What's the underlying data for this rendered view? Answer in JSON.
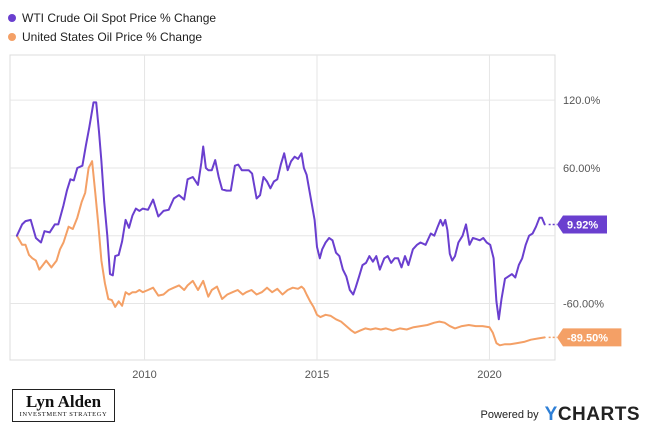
{
  "legend": [
    {
      "name": "WTI Crude Oil Spot Price % Change",
      "color": "#6a3fcf"
    },
    {
      "name": "United States Oil Price % Change",
      "color": "#f4a066"
    }
  ],
  "branding": {
    "logo_name": "Lyn Alden",
    "logo_sub": "INVESTMENT STRATEGY",
    "powered_by": "Powered by",
    "ycharts_y": "Y",
    "ycharts_rest": "CHARTS"
  },
  "chart_data": {
    "type": "line",
    "x_ticks": [
      2010,
      2015,
      2020
    ],
    "xlim": [
      2006.1,
      2021.9
    ],
    "ylim": [
      -110,
      160
    ],
    "y_ticks": [
      120,
      60,
      0,
      -60
    ],
    "y_tick_labels": [
      "120.0%",
      "60.00%",
      "",
      "-60.00%"
    ],
    "grid": true,
    "legend_position": "top-left",
    "end_labels": [
      {
        "series": "WTI Crude Oil Spot Price % Change",
        "text": "9.92%",
        "color": "#6a3fcf"
      },
      {
        "series": "United States Oil Price % Change",
        "text": "-89.50%",
        "color": "#f4a066"
      }
    ],
    "series": [
      {
        "name": "WTI Crude Oil Spot Price % Change",
        "color": "#6a3fcf",
        "points": [
          [
            2006.3,
            0
          ],
          [
            2006.45,
            10
          ],
          [
            2006.55,
            13
          ],
          [
            2006.7,
            14
          ],
          [
            2006.85,
            -2
          ],
          [
            2007.0,
            -6
          ],
          [
            2007.1,
            4
          ],
          [
            2007.25,
            3
          ],
          [
            2007.4,
            10
          ],
          [
            2007.5,
            10
          ],
          [
            2007.65,
            27
          ],
          [
            2007.75,
            40
          ],
          [
            2007.85,
            50
          ],
          [
            2007.95,
            49
          ],
          [
            2008.05,
            60
          ],
          [
            2008.2,
            62
          ],
          [
            2008.3,
            80
          ],
          [
            2008.4,
            96
          ],
          [
            2008.52,
            118
          ],
          [
            2008.6,
            118
          ],
          [
            2008.68,
            92
          ],
          [
            2008.75,
            66
          ],
          [
            2008.83,
            30
          ],
          [
            2008.92,
            0
          ],
          [
            2009.0,
            -34
          ],
          [
            2009.08,
            -35
          ],
          [
            2009.15,
            -18
          ],
          [
            2009.25,
            -17
          ],
          [
            2009.35,
            -5
          ],
          [
            2009.45,
            14
          ],
          [
            2009.55,
            7
          ],
          [
            2009.65,
            18
          ],
          [
            2009.75,
            24
          ],
          [
            2009.85,
            22
          ],
          [
            2009.95,
            24
          ],
          [
            2010.1,
            23
          ],
          [
            2010.25,
            32
          ],
          [
            2010.4,
            17
          ],
          [
            2010.55,
            22
          ],
          [
            2010.7,
            23
          ],
          [
            2010.85,
            33
          ],
          [
            2011.0,
            36
          ],
          [
            2011.15,
            32
          ],
          [
            2011.25,
            50
          ],
          [
            2011.4,
            52
          ],
          [
            2011.55,
            45
          ],
          [
            2011.65,
            65
          ],
          [
            2011.7,
            79
          ],
          [
            2011.78,
            60
          ],
          [
            2011.85,
            58
          ],
          [
            2011.95,
            58
          ],
          [
            2012.05,
            67
          ],
          [
            2012.15,
            52
          ],
          [
            2012.25,
            41
          ],
          [
            2012.38,
            40
          ],
          [
            2012.5,
            40
          ],
          [
            2012.62,
            62
          ],
          [
            2012.72,
            63
          ],
          [
            2012.82,
            58
          ],
          [
            2012.92,
            58
          ],
          [
            2013.02,
            58
          ],
          [
            2013.12,
            55
          ],
          [
            2013.25,
            33
          ],
          [
            2013.35,
            36
          ],
          [
            2013.45,
            52
          ],
          [
            2013.55,
            48
          ],
          [
            2013.65,
            42
          ],
          [
            2013.75,
            48
          ],
          [
            2013.85,
            50
          ],
          [
            2013.95,
            63
          ],
          [
            2014.05,
            73
          ],
          [
            2014.15,
            58
          ],
          [
            2014.25,
            66
          ],
          [
            2014.35,
            70
          ],
          [
            2014.45,
            68
          ],
          [
            2014.55,
            73
          ],
          [
            2014.62,
            60
          ],
          [
            2014.7,
            54
          ],
          [
            2014.78,
            40
          ],
          [
            2014.85,
            28
          ],
          [
            2014.93,
            14
          ],
          [
            2015.0,
            -10
          ],
          [
            2015.08,
            -20
          ],
          [
            2015.15,
            -12
          ],
          [
            2015.25,
            -6
          ],
          [
            2015.35,
            -2
          ],
          [
            2015.45,
            -4
          ],
          [
            2015.55,
            -15
          ],
          [
            2015.65,
            -18
          ],
          [
            2015.75,
            -30
          ],
          [
            2015.85,
            -36
          ],
          [
            2015.95,
            -48
          ],
          [
            2016.05,
            -52
          ],
          [
            2016.12,
            -46
          ],
          [
            2016.22,
            -36
          ],
          [
            2016.32,
            -26
          ],
          [
            2016.42,
            -24
          ],
          [
            2016.52,
            -18
          ],
          [
            2016.62,
            -23
          ],
          [
            2016.72,
            -18
          ],
          [
            2016.82,
            -30
          ],
          [
            2016.95,
            -20
          ],
          [
            2017.05,
            -18
          ],
          [
            2017.15,
            -24
          ],
          [
            2017.25,
            -20
          ],
          [
            2017.35,
            -20
          ],
          [
            2017.45,
            -28
          ],
          [
            2017.55,
            -18
          ],
          [
            2017.65,
            -26
          ],
          [
            2017.78,
            -12
          ],
          [
            2017.9,
            -8
          ],
          [
            2018.0,
            -6
          ],
          [
            2018.15,
            -8
          ],
          [
            2018.3,
            2
          ],
          [
            2018.4,
            0
          ],
          [
            2018.5,
            8
          ],
          [
            2018.58,
            14
          ],
          [
            2018.65,
            9
          ],
          [
            2018.72,
            14
          ],
          [
            2018.78,
            5
          ],
          [
            2018.85,
            -16
          ],
          [
            2018.92,
            -22
          ],
          [
            2019.0,
            -18
          ],
          [
            2019.1,
            -6
          ],
          [
            2019.22,
            0
          ],
          [
            2019.32,
            10
          ],
          [
            2019.42,
            -8
          ],
          [
            2019.52,
            -2
          ],
          [
            2019.62,
            -3
          ],
          [
            2019.72,
            -4
          ],
          [
            2019.82,
            -2
          ],
          [
            2019.92,
            -6
          ],
          [
            2020.02,
            -8
          ],
          [
            2020.12,
            -20
          ],
          [
            2020.2,
            -58
          ],
          [
            2020.27,
            -74
          ],
          [
            2020.35,
            -56
          ],
          [
            2020.45,
            -38
          ],
          [
            2020.55,
            -36
          ],
          [
            2020.65,
            -34
          ],
          [
            2020.75,
            -37
          ],
          [
            2020.85,
            -26
          ],
          [
            2020.95,
            -20
          ],
          [
            2021.05,
            -8
          ],
          [
            2021.15,
            0
          ],
          [
            2021.25,
            2
          ],
          [
            2021.35,
            8
          ],
          [
            2021.45,
            16
          ],
          [
            2021.52,
            16
          ],
          [
            2021.6,
            10
          ]
        ]
      },
      {
        "name": "United States Oil Price % Change",
        "color": "#f4a066",
        "points": [
          [
            2006.3,
            0
          ],
          [
            2006.45,
            -8
          ],
          [
            2006.55,
            -8
          ],
          [
            2006.65,
            -17
          ],
          [
            2006.75,
            -20
          ],
          [
            2006.85,
            -22
          ],
          [
            2006.95,
            -30
          ],
          [
            2007.05,
            -26
          ],
          [
            2007.15,
            -22
          ],
          [
            2007.3,
            -28
          ],
          [
            2007.45,
            -22
          ],
          [
            2007.55,
            -12
          ],
          [
            2007.65,
            -6
          ],
          [
            2007.8,
            8
          ],
          [
            2007.92,
            6
          ],
          [
            2008.05,
            16
          ],
          [
            2008.18,
            30
          ],
          [
            2008.28,
            38
          ],
          [
            2008.38,
            60
          ],
          [
            2008.48,
            66
          ],
          [
            2008.58,
            36
          ],
          [
            2008.66,
            10
          ],
          [
            2008.75,
            -22
          ],
          [
            2008.85,
            -42
          ],
          [
            2008.95,
            -56
          ],
          [
            2009.05,
            -57
          ],
          [
            2009.15,
            -63
          ],
          [
            2009.25,
            -58
          ],
          [
            2009.35,
            -62
          ],
          [
            2009.45,
            -50
          ],
          [
            2009.55,
            -52
          ],
          [
            2009.65,
            -50
          ],
          [
            2009.75,
            -50
          ],
          [
            2009.85,
            -48
          ],
          [
            2009.95,
            -50
          ],
          [
            2010.1,
            -48
          ],
          [
            2010.25,
            -46
          ],
          [
            2010.4,
            -53
          ],
          [
            2010.55,
            -52
          ],
          [
            2010.7,
            -48
          ],
          [
            2010.85,
            -46
          ],
          [
            2011.0,
            -44
          ],
          [
            2011.15,
            -48
          ],
          [
            2011.25,
            -44
          ],
          [
            2011.4,
            -40
          ],
          [
            2011.55,
            -48
          ],
          [
            2011.7,
            -40
          ],
          [
            2011.85,
            -54
          ],
          [
            2011.95,
            -48
          ],
          [
            2012.1,
            -45
          ],
          [
            2012.25,
            -56
          ],
          [
            2012.4,
            -52
          ],
          [
            2012.55,
            -50
          ],
          [
            2012.7,
            -48
          ],
          [
            2012.85,
            -52
          ],
          [
            2012.95,
            -50
          ],
          [
            2013.1,
            -48
          ],
          [
            2013.25,
            -52
          ],
          [
            2013.4,
            -50
          ],
          [
            2013.55,
            -46
          ],
          [
            2013.7,
            -50
          ],
          [
            2013.85,
            -47
          ],
          [
            2014.0,
            -52
          ],
          [
            2014.15,
            -48
          ],
          [
            2014.3,
            -46
          ],
          [
            2014.45,
            -47
          ],
          [
            2014.55,
            -45
          ],
          [
            2014.62,
            -47
          ],
          [
            2014.7,
            -52
          ],
          [
            2014.8,
            -58
          ],
          [
            2014.9,
            -63
          ],
          [
            2015.0,
            -70
          ],
          [
            2015.1,
            -72
          ],
          [
            2015.25,
            -70
          ],
          [
            2015.4,
            -71
          ],
          [
            2015.55,
            -74
          ],
          [
            2015.7,
            -76
          ],
          [
            2015.85,
            -80
          ],
          [
            2016.0,
            -84
          ],
          [
            2016.1,
            -86
          ],
          [
            2016.25,
            -84
          ],
          [
            2016.4,
            -82
          ],
          [
            2016.55,
            -83
          ],
          [
            2016.7,
            -82
          ],
          [
            2016.85,
            -83
          ],
          [
            2017.0,
            -82
          ],
          [
            2017.2,
            -84
          ],
          [
            2017.4,
            -82
          ],
          [
            2017.6,
            -83
          ],
          [
            2017.8,
            -81
          ],
          [
            2018.0,
            -80
          ],
          [
            2018.2,
            -79
          ],
          [
            2018.4,
            -77
          ],
          [
            2018.55,
            -76
          ],
          [
            2018.7,
            -77
          ],
          [
            2018.85,
            -80
          ],
          [
            2019.0,
            -82
          ],
          [
            2019.2,
            -80
          ],
          [
            2019.4,
            -79
          ],
          [
            2019.6,
            -80
          ],
          [
            2019.8,
            -80
          ],
          [
            2020.0,
            -81
          ],
          [
            2020.1,
            -86
          ],
          [
            2020.2,
            -95
          ],
          [
            2020.3,
            -97
          ],
          [
            2020.45,
            -96
          ],
          [
            2020.6,
            -96
          ],
          [
            2020.8,
            -95
          ],
          [
            2021.0,
            -94
          ],
          [
            2021.2,
            -92
          ],
          [
            2021.4,
            -91
          ],
          [
            2021.6,
            -90
          ]
        ]
      }
    ]
  }
}
